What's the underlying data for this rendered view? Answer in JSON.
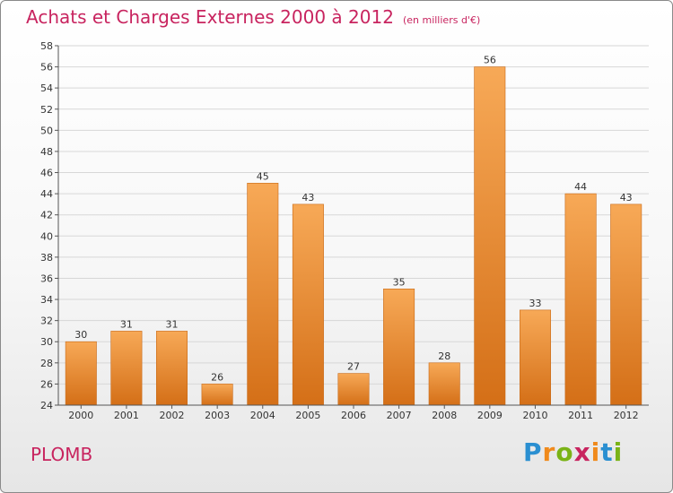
{
  "title": "Achats et Charges Externes 2000 à 2012",
  "subtitle": "(en milliers d'€)",
  "commune": "PLOMB",
  "logo": {
    "letters": [
      "P",
      "r",
      "o",
      "x",
      "i",
      "t",
      "i"
    ],
    "colors": [
      "#2a8fd1",
      "#f08a1c",
      "#7ab317",
      "#c8245f",
      "#f08a1c",
      "#2a8fd1",
      "#7ab317"
    ]
  },
  "colors": {
    "bar_top": "#f7a957",
    "bar_bottom": "#d46f17",
    "bar_stroke": "#c86a18",
    "grid": "#d7d7d7",
    "text_accent": "#c8245f"
  },
  "chart_data": {
    "type": "bar",
    "title": "Achats et Charges Externes 2000 à 2012",
    "subtitle": "(en milliers d'€)",
    "xlabel": "",
    "ylabel": "",
    "categories": [
      "2000",
      "2001",
      "2002",
      "2003",
      "2004",
      "2005",
      "2006",
      "2007",
      "2008",
      "2009",
      "2010",
      "2011",
      "2012"
    ],
    "values": [
      30,
      31,
      31,
      26,
      45,
      43,
      27,
      35,
      28,
      56,
      33,
      44,
      43
    ],
    "ylim": [
      24,
      58
    ],
    "yticks": [
      24,
      26,
      28,
      30,
      32,
      34,
      36,
      38,
      40,
      42,
      44,
      46,
      48,
      50,
      52,
      54,
      56,
      58
    ],
    "grid": true,
    "data_labels": true
  }
}
